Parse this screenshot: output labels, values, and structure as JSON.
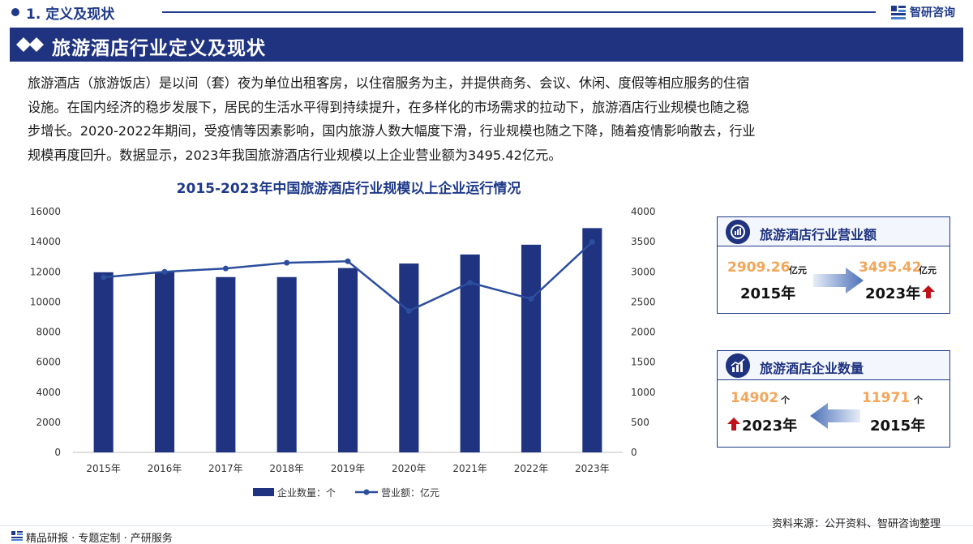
{
  "header": {
    "section_title": "1. 定义及现状",
    "brand": "智研咨询"
  },
  "banner": {
    "title": "旅游酒店行业定义及现状"
  },
  "paragraph": [
    "旅游酒店（旅游饭店）是以间（套）夜为单位出租客房，以住宿服务为主，并提供商务、会议、休闲、度假等相应服务的住宿",
    "设施。在国内经济的稳步发展下，居民的生活水平得到持续提升，在多样化的市场需求的拉动下，旅游酒店行业规模也随之稳",
    "步增长。2020-2022年期间，受疫情等因素影响，国内旅游人数大幅度下滑，行业规模也随之下降，随着疫情影响散去，行业",
    "规模再度回升。数据显示，2023年我国旅游酒店行业规模以上企业营业额为3495.42亿元。"
  ],
  "chart_data": {
    "type": "bar",
    "title": "2015-2023年中国旅游酒店行业规模以上企业运行情况",
    "categories": [
      "2015年",
      "2016年",
      "2017年",
      "2018年",
      "2019年",
      "2020年",
      "2021年",
      "2022年",
      "2023年"
    ],
    "series": [
      {
        "name": "企业数量：个",
        "type": "bar",
        "axis": "left",
        "values": [
          11971,
          12000,
          11650,
          11650,
          12250,
          12550,
          13150,
          13800,
          14902
        ]
      },
      {
        "name": "营业额：亿元",
        "type": "line",
        "axis": "right",
        "values": [
          2909.26,
          3000,
          3055,
          3150,
          3175,
          2350,
          2820,
          2550,
          3495.42
        ]
      }
    ],
    "ylim_left": [
      0,
      16000
    ],
    "yticks_left": [
      "0",
      "2000",
      "4000",
      "6000",
      "8000",
      "10000",
      "12000",
      "14000",
      "16000"
    ],
    "ylim_right": [
      0,
      4000
    ],
    "yticks_right": [
      "0",
      "500",
      "1000",
      "1500",
      "2000",
      "2500",
      "3000",
      "3500",
      "4000"
    ],
    "legend_position": "bottom",
    "grid": false,
    "colors": {
      "bar": "#1f3380",
      "line": "#2c4e9e"
    }
  },
  "card_revenue": {
    "title": "旅游酒店行业营业额",
    "from_value": "2909.26",
    "from_unit": "亿元",
    "from_year": "2015年",
    "to_value": "3495.42",
    "to_unit": "亿元",
    "to_year": "2023年"
  },
  "card_count": {
    "title": "旅游酒店企业数量",
    "new_value": "14902",
    "new_unit": "个",
    "new_year": "2023年",
    "old_value": "11971",
    "old_unit": "个",
    "old_year": "2015年"
  },
  "footer": {
    "source": "资料来源：公开资料、智研咨询整理",
    "tagline": "精品研报 · 专题定制 · 产研服务"
  },
  "colors": {
    "brand": "#1f3380",
    "accent_value": "#f2a65a",
    "up_arrow": "#c0121b"
  }
}
